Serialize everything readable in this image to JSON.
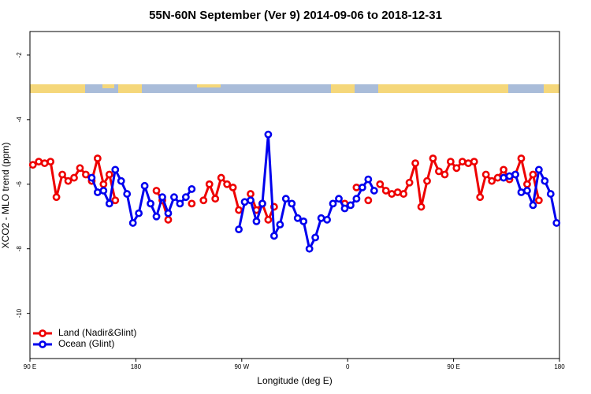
{
  "chart_data": {
    "type": "line",
    "title": "55N-60N September (Ver 9)   2014-09-06 to 2018-12-31",
    "x_label": "Longitude (deg E)",
    "y_label": "XCO2 - MLO trend (ppm)",
    "xlim": [
      90,
      540
    ],
    "xticks": [
      {
        "value": 90,
        "label": "90 E"
      },
      180,
      {
        "value": 270,
        "label": "90 W"
      },
      {
        "value": 360,
        "label": "0"
      },
      {
        "value": 450,
        "label": "90 E"
      },
      {
        "value": 540,
        "label": "180"
      }
    ],
    "ylim": [
      -11.4,
      -1.27
    ],
    "yticks": [
      -2,
      -4,
      -6,
      -8,
      -10
    ],
    "legend": "bottom-left",
    "x": [
      92.5,
      97.5,
      102.5,
      107.5,
      112.5,
      117.5,
      122.5,
      127.5,
      132.5,
      137.5,
      142.5,
      147.5,
      152.5,
      157.5,
      162.5,
      167.5,
      172.5,
      177.5,
      182.5,
      187.5,
      192.5,
      197.5,
      202.5,
      207.5,
      212.5,
      217.5,
      222.5,
      227.5,
      232.5,
      237.5,
      242.5,
      247.5,
      252.5,
      257.5,
      262.5,
      267.5,
      272.5,
      277.5,
      282.5,
      287.5,
      292.5,
      297.5,
      302.5,
      307.5,
      312.5,
      317.5,
      322.5,
      327.5,
      332.5,
      337.5,
      342.5,
      347.5,
      352.5,
      357.5,
      362.5,
      367.5,
      372.5,
      377.5,
      382.5,
      387.5,
      392.5,
      397.5,
      402.5,
      407.5,
      412.5,
      417.5,
      422.5,
      427.5,
      432.5,
      437.5,
      442.5,
      447.5,
      452.5,
      457.5,
      462.5,
      467.5,
      472.5,
      477.5,
      482.5,
      487.5,
      492.5,
      497.5,
      502.5,
      507.5,
      512.5,
      517.5,
      522.5,
      527.5,
      532.5,
      537.5
    ],
    "series": [
      {
        "name": "Land (Nadir&Glint)",
        "color": "#ee0000",
        "values": [
          -5.4,
          -5.3,
          -5.35,
          -5.3,
          -6.4,
          -5.7,
          -5.9,
          -5.8,
          -5.5,
          -5.7,
          -5.9,
          -5.2,
          -6.0,
          -5.7,
          -6.5,
          null,
          null,
          null,
          null,
          null,
          null,
          -6.2,
          -6.5,
          -7.1,
          null,
          null,
          null,
          -6.6,
          null,
          -6.5,
          -6.0,
          -6.45,
          -5.8,
          -6.0,
          -6.1,
          -6.8,
          null,
          -6.3,
          -6.8,
          -6.6,
          -7.1,
          -6.7,
          null,
          null,
          null,
          null,
          null,
          null,
          null,
          null,
          null,
          null,
          null,
          -6.6,
          null,
          -6.1,
          null,
          -6.5,
          null,
          -6.0,
          -6.2,
          -6.3,
          -6.25,
          -6.3,
          -5.95,
          -5.35,
          -6.7,
          -5.9,
          -5.2,
          -5.6,
          -5.7,
          -5.3,
          -5.5,
          -5.3,
          -5.35,
          -5.3,
          -6.4,
          -5.7,
          -5.9,
          -5.8,
          -5.55,
          -5.85,
          -5.7,
          -5.2,
          -6.0,
          -5.7,
          -6.5,
          null,
          null,
          null
        ]
      },
      {
        "name": "Ocean (Glint)",
        "color": "#0000ee",
        "values": [
          null,
          null,
          null,
          null,
          null,
          null,
          null,
          null,
          null,
          null,
          -5.8,
          -6.25,
          -6.2,
          -6.6,
          -5.55,
          -5.9,
          -6.3,
          -7.2,
          -6.9,
          -6.05,
          -6.6,
          -7.0,
          -6.4,
          -6.9,
          -6.4,
          -6.6,
          -6.4,
          -6.15,
          null,
          null,
          null,
          null,
          null,
          null,
          null,
          -7.4,
          -6.55,
          -6.5,
          -7.15,
          -6.6,
          -4.46,
          -7.6,
          -7.25,
          -6.45,
          -6.6,
          -7.05,
          -7.15,
          -8.0,
          -7.65,
          -7.05,
          -7.1,
          -6.6,
          -6.45,
          -6.75,
          -6.65,
          -6.45,
          -6.1,
          -5.85,
          -6.2,
          null,
          null,
          null,
          null,
          null,
          null,
          null,
          null,
          null,
          null,
          null,
          null,
          null,
          null,
          null,
          null,
          null,
          null,
          null,
          null,
          null,
          -5.8,
          -5.75,
          -5.7,
          -6.25,
          -6.2,
          -6.65,
          -5.55,
          -5.9,
          -6.3,
          -7.2
        ]
      }
    ]
  }
}
